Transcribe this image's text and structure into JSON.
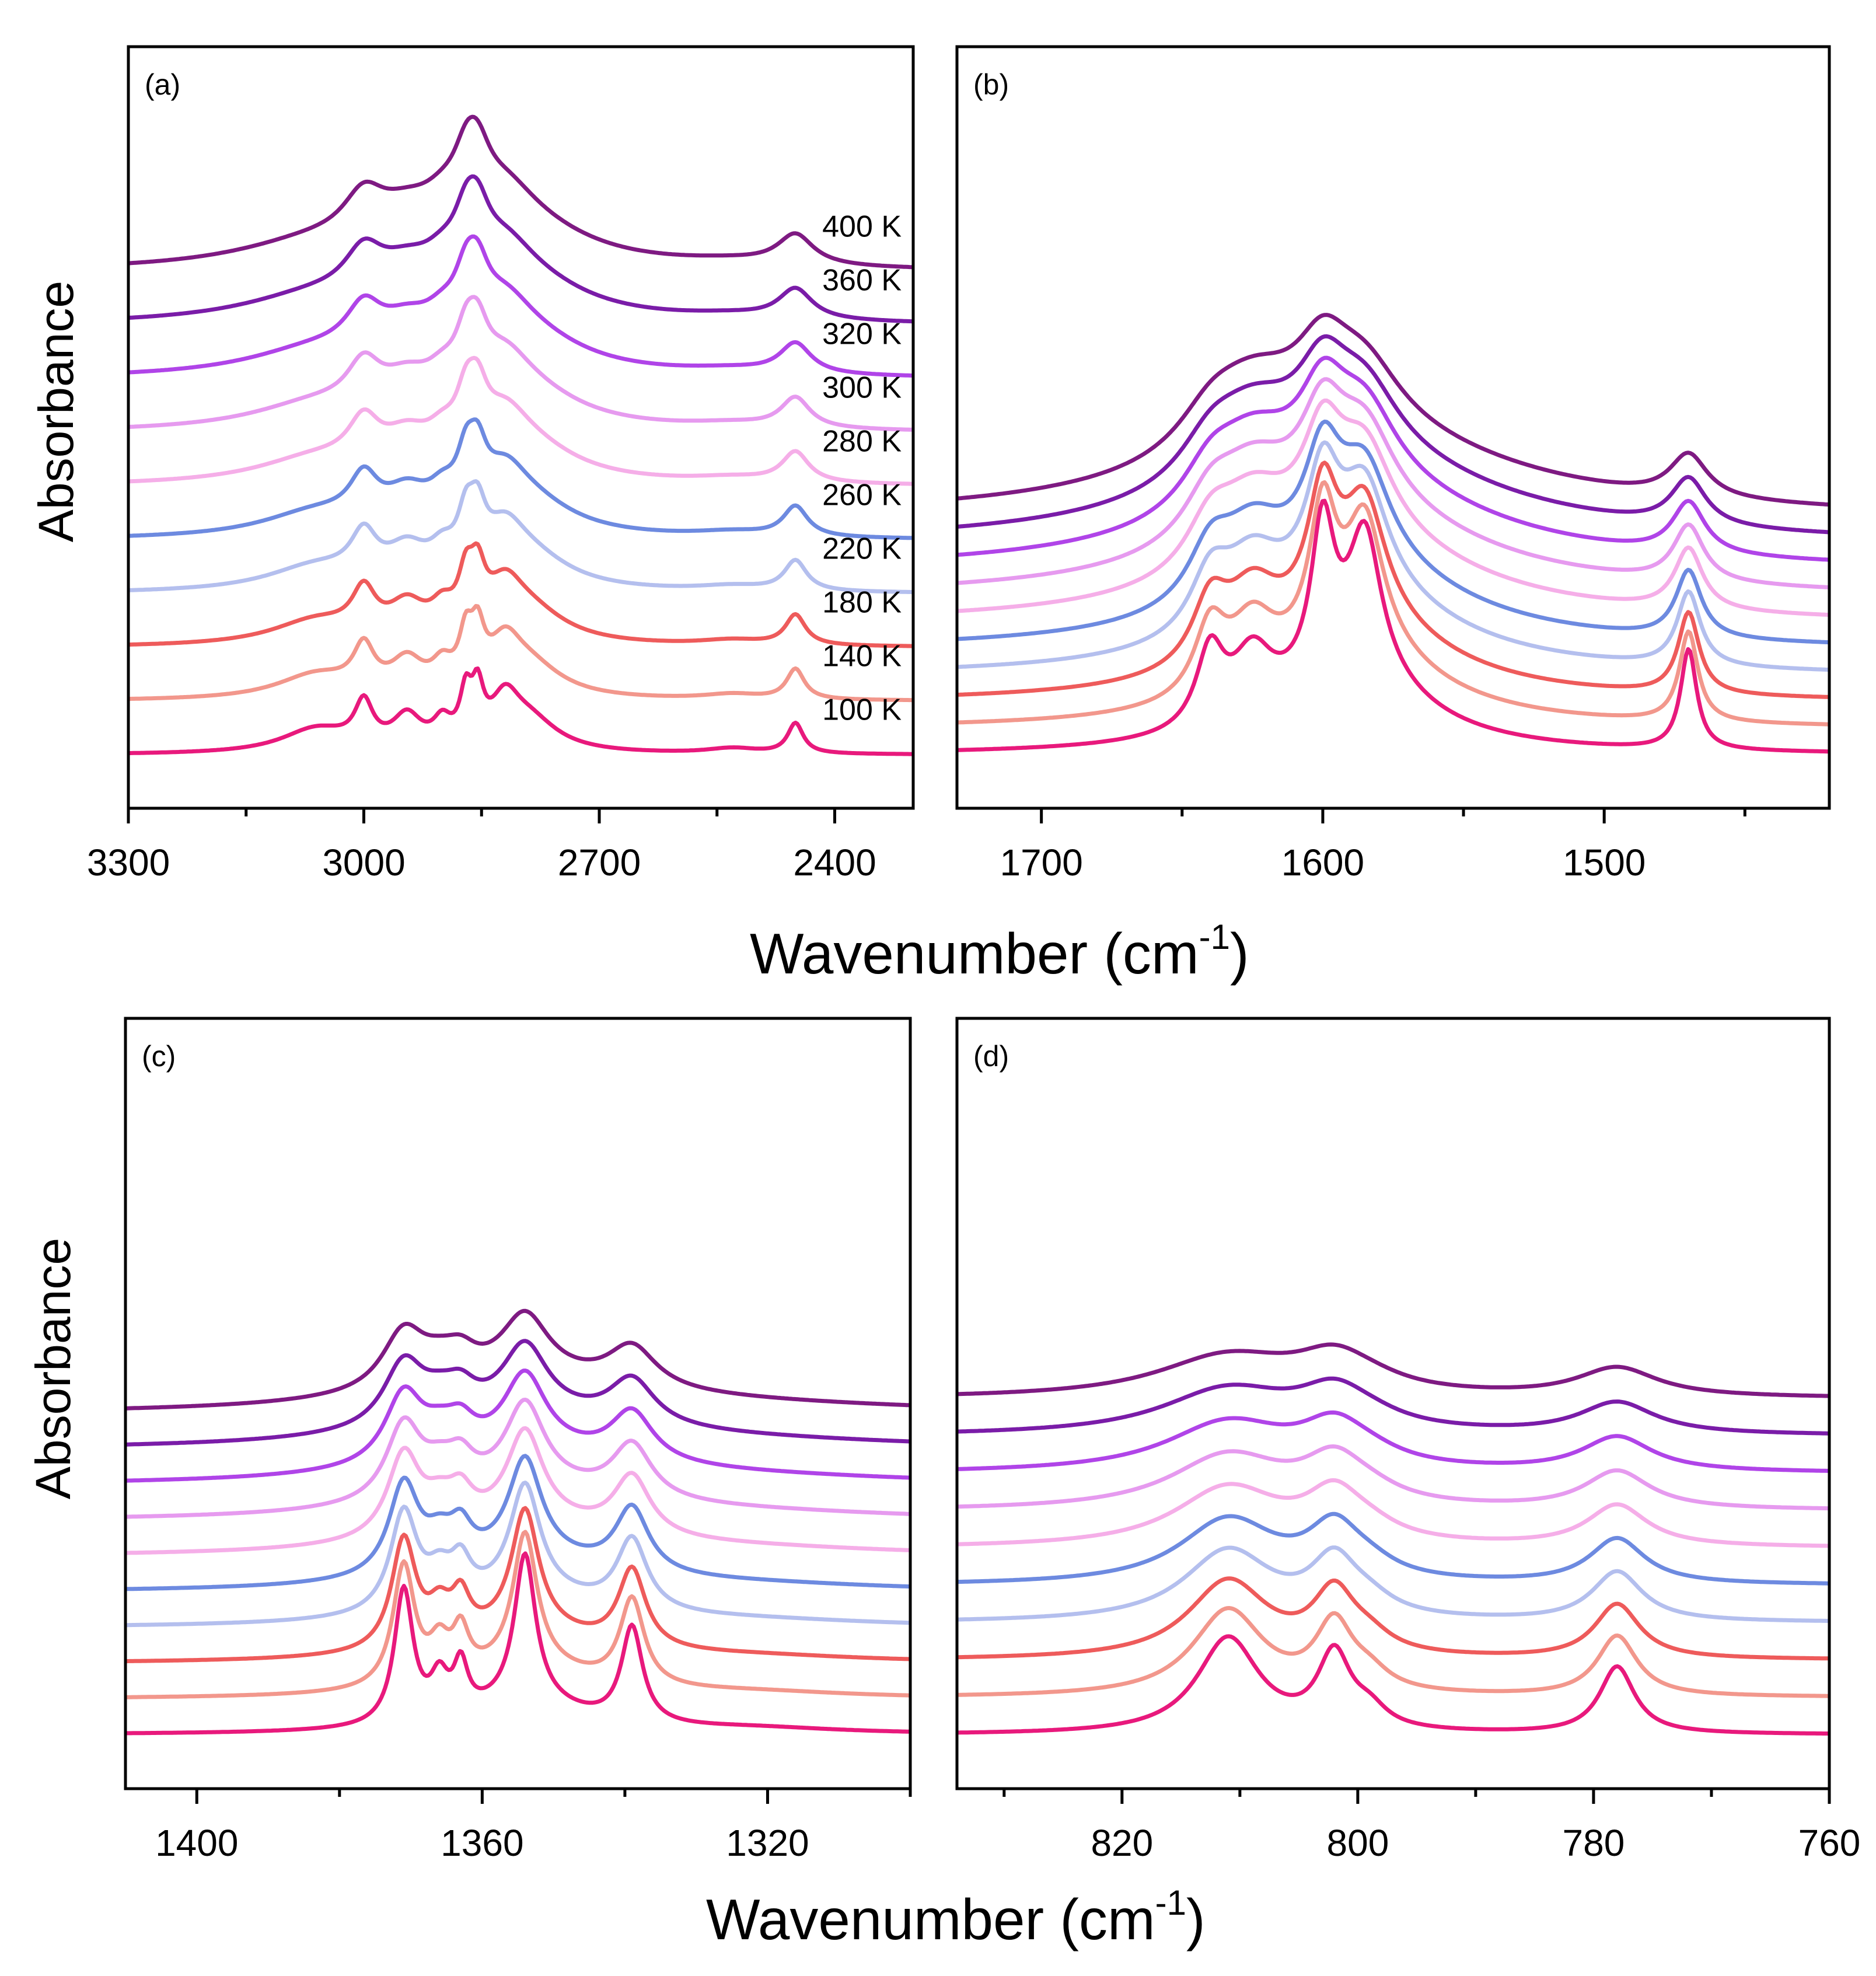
{
  "figure": {
    "ylabel": "Absorbance",
    "xlabel_main": "Wavenumber (cm",
    "xlabel_sup": "-1",
    "xlabel_close": ")"
  },
  "series": [
    {
      "name": "100 K",
      "color": "#E8197C"
    },
    {
      "name": "140 K",
      "color": "#F2978C"
    },
    {
      "name": "180 K",
      "color": "#EE5B5B"
    },
    {
      "name": "220 K",
      "color": "#B4BFEE"
    },
    {
      "name": "260 K",
      "color": "#6D8AE0"
    },
    {
      "name": "280 K",
      "color": "#F5AEE8"
    },
    {
      "name": "300 K",
      "color": "#E69AEF"
    },
    {
      "name": "320 K",
      "color": "#B044E8"
    },
    {
      "name": "360 K",
      "color": "#7A1CA8"
    },
    {
      "name": "400 K",
      "color": "#7E1A82"
    }
  ],
  "chart_data": [
    {
      "type": "line",
      "panel": "(a)",
      "title": "",
      "xlabel": "Wavenumber (cm-1)",
      "ylabel": "Absorbance",
      "xlim": [
        3300,
        2300
      ],
      "xticks": [
        3300,
        3000,
        2700,
        2400
      ],
      "offset_step": 0.22,
      "peaks": [
        {
          "pos": 3060,
          "height": 0.32,
          "width": 55
        },
        {
          "pos": 3000,
          "height": 0.55,
          "width": 14
        },
        {
          "pos": 2945,
          "height": 0.42,
          "width": 22
        },
        {
          "pos": 2900,
          "height": 0.3,
          "width": 14
        },
        {
          "pos": 2870,
          "height": 0.6,
          "width": 9
        },
        {
          "pos": 2855,
          "height": 0.62,
          "width": 9
        },
        {
          "pos": 2820,
          "height": 0.55,
          "width": 22
        },
        {
          "pos": 2790,
          "height": 0.42,
          "width": 45
        },
        {
          "pos": 2530,
          "height": 0.07,
          "width": 40
        },
        {
          "pos": 2450,
          "height": 0.4,
          "width": 12
        }
      ],
      "legend_labels": [
        "100 K",
        "140 K",
        "180 K",
        "220 K",
        "260 K",
        "280 K",
        "300 K",
        "320 K",
        "360 K",
        "400 K"
      ]
    },
    {
      "type": "line",
      "panel": "(b)",
      "title": "",
      "xlim": [
        1730,
        1420
      ],
      "xticks": [
        1700,
        1600,
        1500
      ],
      "offset_step": 0.14,
      "peaks": [
        {
          "pos": 1640,
          "height": 0.95,
          "width": 6
        },
        {
          "pos": 1625,
          "height": 0.8,
          "width": 9
        },
        {
          "pos": 1600,
          "height": 1.85,
          "width": 5
        },
        {
          "pos": 1585,
          "height": 1.7,
          "width": 7
        },
        {
          "pos": 1590,
          "height": 1.0,
          "width": 30
        },
        {
          "pos": 1470,
          "height": 1.25,
          "width": 3.5
        }
      ]
    },
    {
      "type": "line",
      "panel": "(c)",
      "title": "",
      "xlim": [
        1410,
        1300
      ],
      "xticks": [
        1400,
        1360,
        1320
      ],
      "offset_step": 0.15,
      "peaks": [
        {
          "pos": 1371,
          "height": 2.1,
          "width": 1.6
        },
        {
          "pos": 1366,
          "height": 0.6,
          "width": 1.5
        },
        {
          "pos": 1363,
          "height": 0.75,
          "width": 1.2
        },
        {
          "pos": 1354,
          "height": 2.3,
          "width": 1.8
        },
        {
          "pos": 1339,
          "height": 1.5,
          "width": 1.8
        },
        {
          "pos": 1354,
          "height": 0.45,
          "width": 10
        },
        {
          "pos": 1322,
          "height": 0.08,
          "width": 15
        }
      ]
    },
    {
      "type": "line",
      "panel": "(d)",
      "title": "",
      "xlim": [
        834,
        760
      ],
      "xticks": [
        820,
        800,
        780,
        760
      ],
      "offset_step": 0.16,
      "peaks": [
        {
          "pos": 811,
          "height": 1.35,
          "width": 3.2
        },
        {
          "pos": 802,
          "height": 1.05,
          "width": 1.7
        },
        {
          "pos": 799,
          "height": 0.25,
          "width": 1.8
        },
        {
          "pos": 778,
          "height": 0.95,
          "width": 1.8
        }
      ]
    }
  ]
}
